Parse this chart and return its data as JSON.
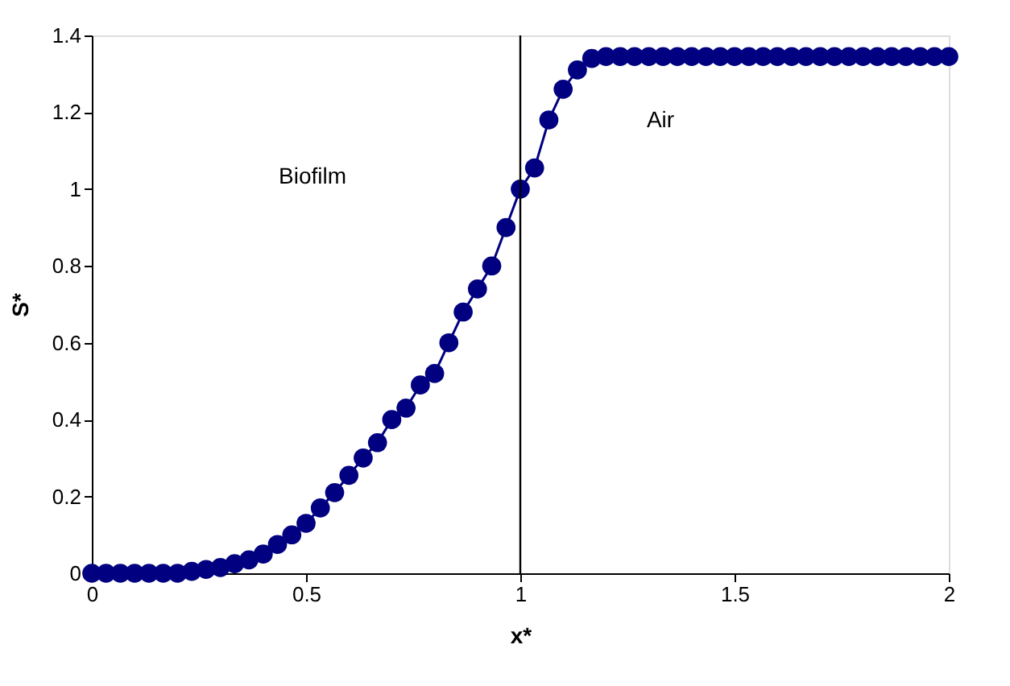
{
  "chart_data": {
    "type": "line",
    "xlabel": "x*",
    "ylabel": "S*",
    "marker": "circle",
    "grid": false,
    "x": [
      0,
      0.0333,
      0.0667,
      0.1,
      0.1333,
      0.1667,
      0.2,
      0.2333,
      0.2667,
      0.3,
      0.3333,
      0.3667,
      0.4,
      0.4333,
      0.4667,
      0.5,
      0.5333,
      0.5667,
      0.6,
      0.6333,
      0.6667,
      0.7,
      0.7333,
      0.7667,
      0.8,
      0.8333,
      0.8667,
      0.9,
      0.9333,
      0.9667,
      1,
      1.0333,
      1.0667,
      1.1,
      1.1333,
      1.1667,
      1.2,
      1.2333,
      1.2667,
      1.3,
      1.3333,
      1.3667,
      1.4,
      1.4333,
      1.4667,
      1.5,
      1.5333,
      1.5667,
      1.6,
      1.6333,
      1.6667,
      1.7,
      1.7333,
      1.7667,
      1.8,
      1.8333,
      1.8667,
      1.9,
      1.9333,
      1.9667,
      2
    ],
    "series": [
      {
        "color": "#000080",
        "values": [
          0,
          0,
          0,
          0,
          0,
          0,
          0,
          0.005,
          0.01,
          0.015,
          0.025,
          0.035,
          0.05,
          0.075,
          0.1,
          0.13,
          0.17,
          0.21,
          0.255,
          0.3,
          0.34,
          0.4,
          0.43,
          0.49,
          0.52,
          0.6,
          0.68,
          0.74,
          0.8,
          0.9,
          1.0,
          1.055,
          1.18,
          1.26,
          1.31,
          1.34,
          1.345,
          1.345,
          1.345,
          1.345,
          1.345,
          1.345,
          1.345,
          1.345,
          1.345,
          1.345,
          1.345,
          1.345,
          1.345,
          1.345,
          1.345,
          1.345,
          1.345,
          1.345,
          1.345,
          1.345,
          1.345,
          1.345,
          1.345,
          1.345,
          1.345
        ]
      }
    ],
    "xlim": [
      0,
      2
    ],
    "xticks": [
      0,
      0.5,
      1,
      1.5,
      2
    ],
    "ylim": [
      0,
      1.4
    ],
    "yticks": [
      0,
      0.2,
      0.4,
      0.6,
      0.8,
      1,
      1.2,
      1.4
    ],
    "ref_lines": [
      {
        "axis": "x",
        "value": 1,
        "color": "#000000"
      }
    ],
    "annotations": [
      "Biofilm",
      "Air"
    ]
  }
}
